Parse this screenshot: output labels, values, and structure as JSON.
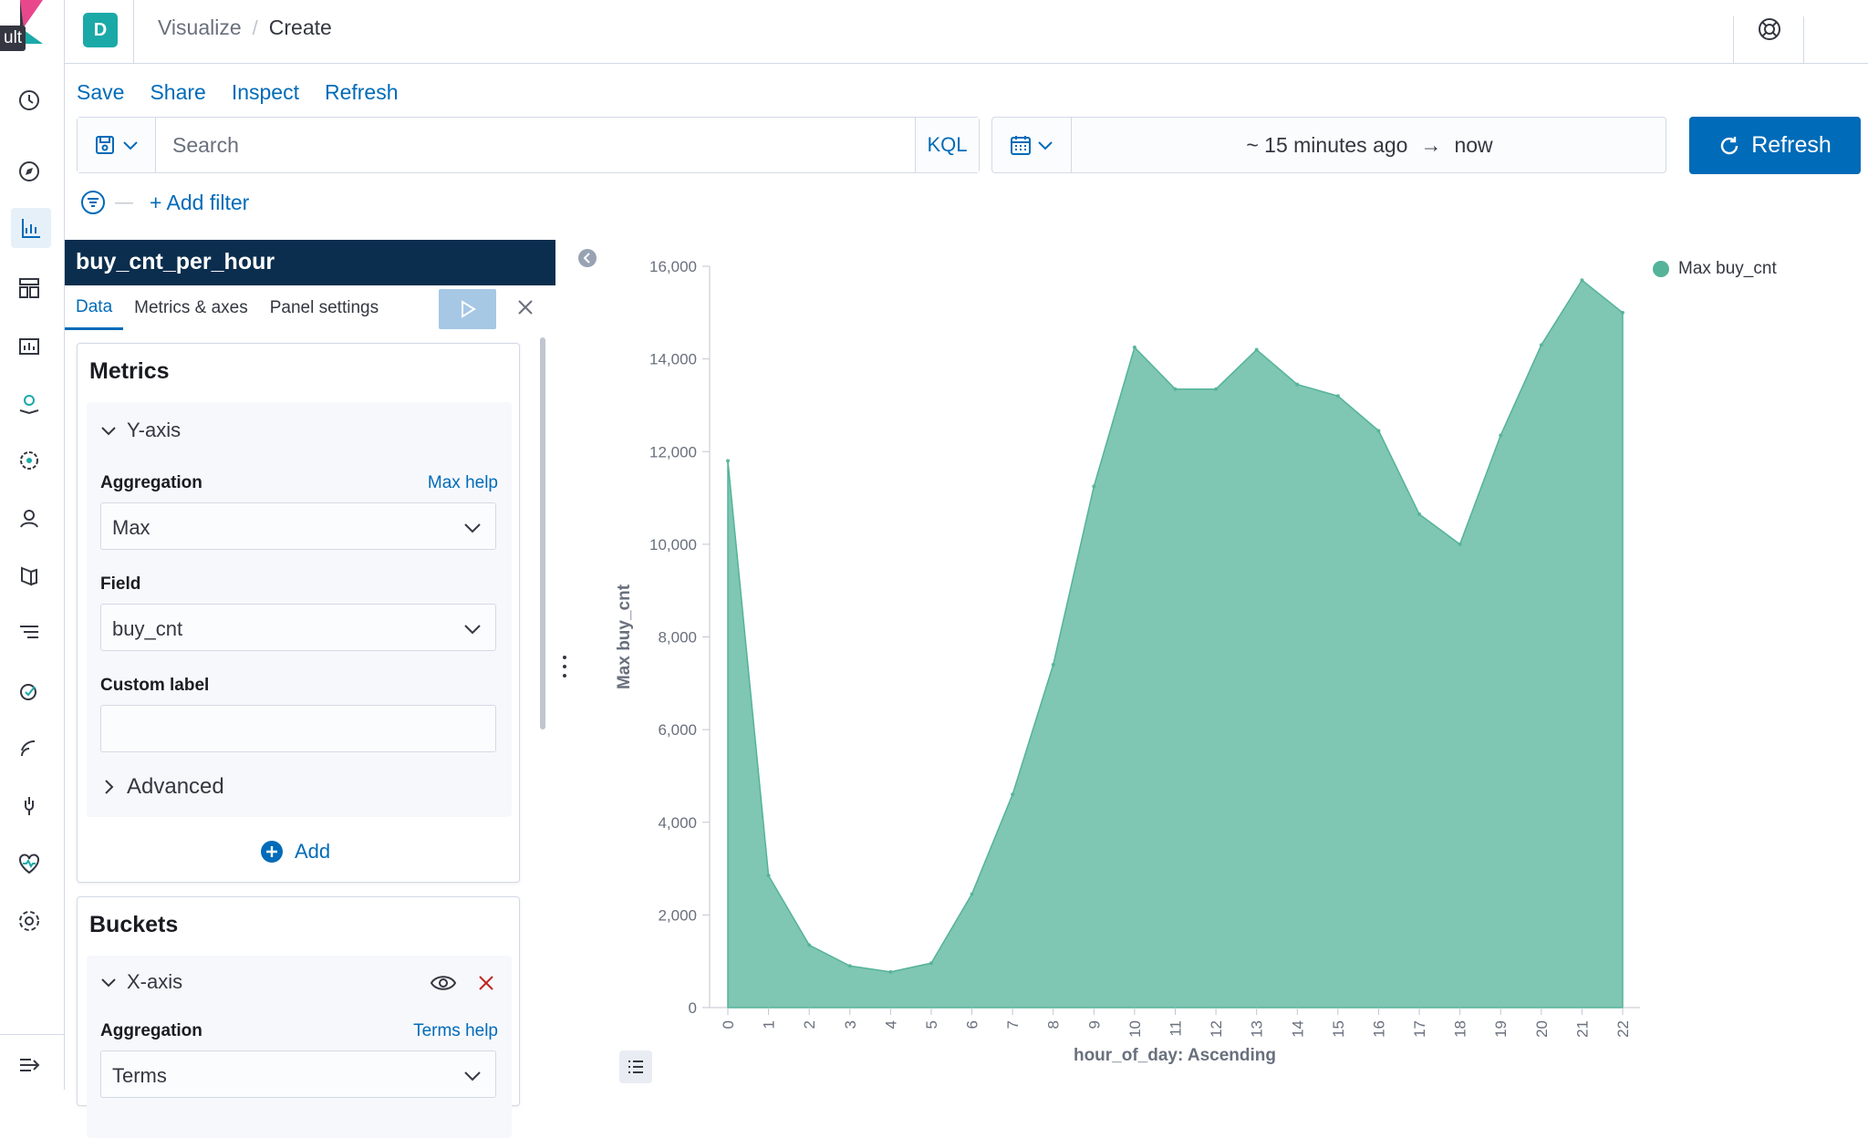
{
  "rail": {
    "badge": "ult",
    "icons": [
      "clock-icon",
      "compass-icon",
      "visualize-icon",
      "dashboard-icon",
      "canvas-icon",
      "maps-icon",
      "ml-icon",
      "infra-icon",
      "logs-icon",
      "apm-icon",
      "uptime-icon",
      "siem-icon",
      "devtools-icon",
      "monitoring-icon",
      "management-icon",
      "collapse-nav-icon"
    ]
  },
  "header": {
    "space_initial": "D",
    "breadcrumbs": [
      "Visualize",
      "Create"
    ],
    "breadcrumb_separator": "/"
  },
  "topnav": [
    "Save",
    "Share",
    "Inspect",
    "Refresh"
  ],
  "query": {
    "placeholder": "Search",
    "language": "KQL"
  },
  "time": {
    "start": "~ 15 minutes ago",
    "end": "now",
    "arrow": "→"
  },
  "refresh_button": "Refresh",
  "filter": {
    "dash": "—",
    "add_filter": "+ Add filter"
  },
  "editor": {
    "title": "buy_cnt_per_hour",
    "tabs": [
      "Data",
      "Metrics & axes",
      "Panel settings"
    ],
    "metrics": {
      "title": "Metrics",
      "yaxis_label": "Y-axis",
      "aggregation_label": "Aggregation",
      "aggregation_help": "Max help",
      "aggregation_value": "Max",
      "field_label": "Field",
      "field_value": "buy_cnt",
      "custom_label": "Custom label",
      "custom_value": "",
      "advanced": "Advanced",
      "add": "Add"
    },
    "buckets": {
      "title": "Buckets",
      "xaxis_label": "X-axis",
      "aggregation_label": "Aggregation",
      "aggregation_help": "Terms help",
      "aggregation_value": "Terms"
    }
  },
  "colors": {
    "accent": "#006bb8",
    "series": "#54b399",
    "title_bar": "#0b2e4e"
  },
  "chart_data": {
    "type": "area",
    "xlabel": "hour_of_day: Ascending",
    "ylabel": "Max buy_cnt",
    "ylim": [
      0,
      16000
    ],
    "yticks": [
      "0",
      "2,000",
      "4,000",
      "6,000",
      "8,000",
      "10,000",
      "12,000",
      "14,000",
      "16,000"
    ],
    "yticks_values": [
      0,
      2000,
      4000,
      6000,
      8000,
      10000,
      12000,
      14000,
      16000
    ],
    "categories": [
      "0",
      "1",
      "2",
      "3",
      "4",
      "5",
      "6",
      "7",
      "8",
      "9",
      "10",
      "11",
      "12",
      "13",
      "14",
      "15",
      "16",
      "17",
      "18",
      "19",
      "20",
      "21",
      "22"
    ],
    "series": [
      {
        "name": "Max buy_cnt",
        "values": [
          11800,
          2850,
          1350,
          900,
          770,
          960,
          2450,
          4600,
          7400,
          11250,
          14250,
          13350,
          13350,
          14200,
          13450,
          13200,
          12450,
          10650,
          10000,
          12350,
          14300,
          15700,
          15000
        ]
      }
    ],
    "legend_position": "top-right"
  }
}
